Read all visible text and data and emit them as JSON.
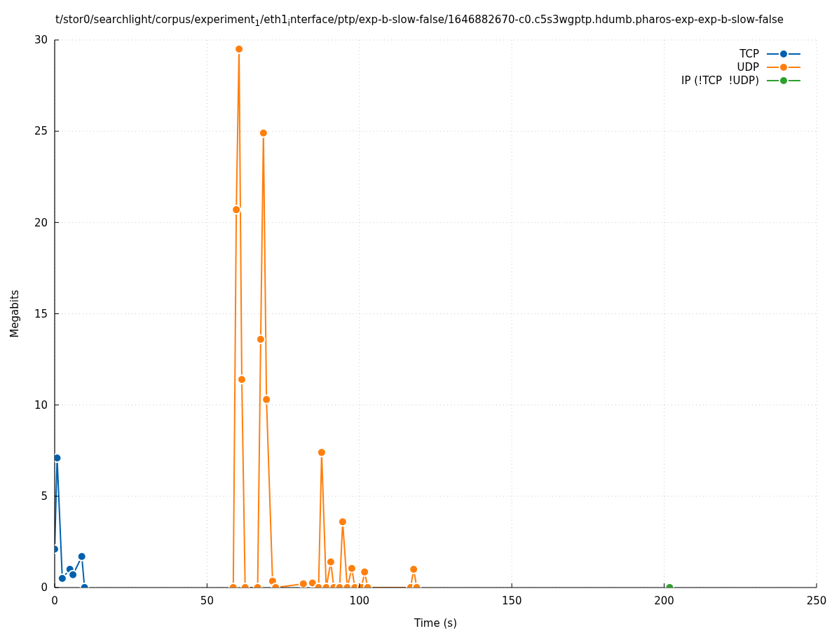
{
  "chart_data": {
    "type": "line",
    "title": "t/stor0/searchlight/corpus/experiment$_{1}$/eth1$_{i}$nterface/ptp/exp-b-slow-false/1646882670-c0.c5s3wgptp.hdumb.pharos-exp-exp-b-slow-false",
    "xlabel": "Time (s)",
    "ylabel": "Megabits",
    "xlim": [
      0,
      250
    ],
    "xticks": [
      0,
      50,
      100,
      150,
      200,
      250
    ],
    "ylim": [
      0,
      30
    ],
    "yticks": [
      0,
      5,
      10,
      15,
      20,
      25,
      30
    ],
    "grid": true,
    "legend": "top right",
    "marker": "circle",
    "line_style": "solid",
    "series": [
      {
        "name": "TCP",
        "color": "#0060ad",
        "x": [
          0,
          0.8,
          2.5,
          5.0,
          6.0,
          8.9,
          9.8
        ],
        "values": [
          2.1,
          7.1,
          0.5,
          1.0,
          0.7,
          1.7,
          0
        ]
      },
      {
        "name": "UDP",
        "color": "#ff7f0e",
        "x": [
          58.6,
          59.6,
          60.5,
          61.4,
          62.5,
          66.6,
          67.6,
          68.5,
          69.5,
          71.5,
          72.5,
          81.6,
          84.6,
          86.6,
          87.6,
          89.1,
          90.6,
          91.6,
          93.5,
          94.5,
          96.0,
          97.5,
          98.5,
          100.7,
          101.7,
          102.7,
          116.8,
          117.8,
          118.8
        ],
        "values": [
          0,
          20.7,
          29.5,
          11.4,
          0,
          0,
          13.6,
          24.9,
          10.3,
          0.35,
          0,
          0.2,
          0.25,
          0,
          7.4,
          0,
          1.4,
          0,
          0,
          3.6,
          0,
          1.05,
          0,
          0,
          0.85,
          0,
          0,
          1.0,
          0
        ]
      },
      {
        "name": "IP (!TCP  !UDP)",
        "color": "#2ca02c",
        "x": [
          201.8
        ],
        "values": [
          0
        ]
      }
    ]
  }
}
